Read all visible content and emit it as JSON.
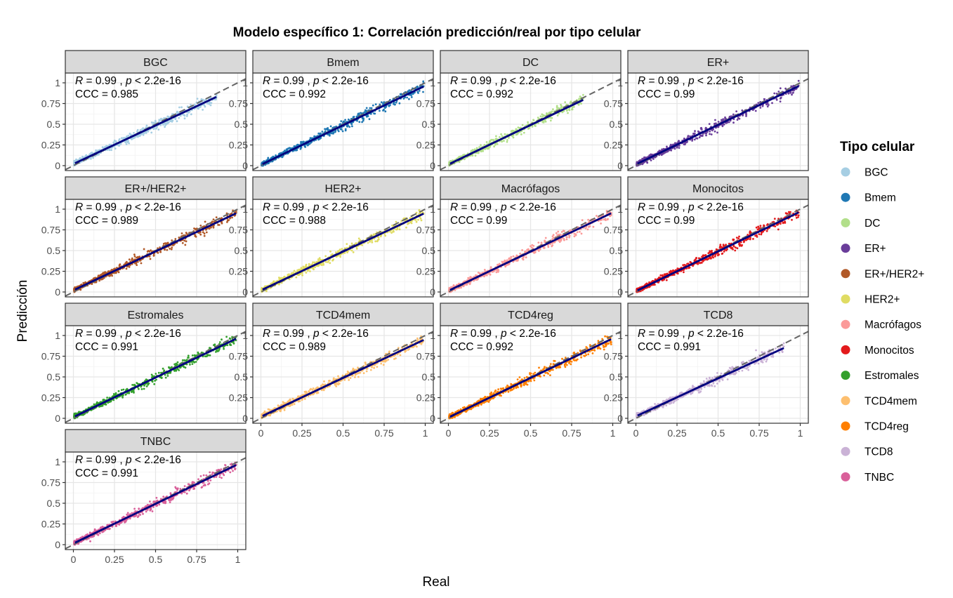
{
  "chart_data": {
    "type": "scatter",
    "title": "Modelo específico 1: Correlación predicción/real por tipo celular",
    "xlabel": "Real",
    "ylabel": "Predicción",
    "xlim": [
      0,
      1
    ],
    "ylim": [
      0,
      1
    ],
    "x_ticks": [
      "0",
      "0.25",
      "0.5",
      "0.75",
      "1"
    ],
    "y_ticks": [
      "0",
      "0.25",
      "0.5",
      "0.75",
      "1"
    ],
    "grid": true,
    "facet_layout": "4 columns x 4 rows",
    "identity_line": "dashed grey y = x",
    "legend": {
      "title": "Tipo celular",
      "placement": "right",
      "entries": [
        "BGC",
        "Bmem",
        "DC",
        "ER+",
        "ER+/HER2+",
        "HER2+",
        "Macrófagos",
        "Monocitos",
        "Estromales",
        "TCD4mem",
        "TCD4reg",
        "TCD8",
        "TNBC"
      ]
    },
    "annotation_template": {
      "r_sym": "R",
      "r_sep": " = ",
      "r_suffix": " , ",
      "p_sym": "p",
      "p_text": " < 2.2e-16",
      "ccc_prefix": "CCC = "
    },
    "panels": [
      {
        "name": "BGC",
        "color": "#A6CEE3",
        "R": "0.99",
        "CCC": "0.985",
        "xmax": 0.87,
        "fit_slope": 0.93,
        "fit_intercept": 0.02
      },
      {
        "name": "Bmem",
        "color": "#1F78B4",
        "R": "0.99",
        "CCC": "0.992",
        "xmax": 0.99,
        "fit_slope": 0.955,
        "fit_intercept": 0.01
      },
      {
        "name": "DC",
        "color": "#B2DF8A",
        "R": "0.99",
        "CCC": "0.992",
        "xmax": 0.82,
        "fit_slope": 0.95,
        "fit_intercept": 0.015
      },
      {
        "name": "ER+",
        "color": "#6A3D9A",
        "R": "0.99",
        "CCC": "0.99",
        "xmax": 0.99,
        "fit_slope": 0.955,
        "fit_intercept": 0.015
      },
      {
        "name": "ER+/HER2+",
        "color": "#B15928",
        "R": "0.99",
        "CCC": "0.989",
        "xmax": 0.99,
        "fit_slope": 0.94,
        "fit_intercept": 0.02
      },
      {
        "name": "HER2+",
        "color": "#E0DC63",
        "R": "0.99",
        "CCC": "0.988",
        "xmax": 0.99,
        "fit_slope": 0.935,
        "fit_intercept": 0.02
      },
      {
        "name": "Macrófagos",
        "color": "#FB9A99",
        "R": "0.99",
        "CCC": "0.99",
        "xmax": 0.99,
        "fit_slope": 0.945,
        "fit_intercept": 0.015
      },
      {
        "name": "Monocitos",
        "color": "#E31A1C",
        "R": "0.99",
        "CCC": "0.99",
        "xmax": 0.99,
        "fit_slope": 0.96,
        "fit_intercept": 0.01
      },
      {
        "name": "Estromales",
        "color": "#33A02C",
        "R": "0.99",
        "CCC": "0.991",
        "xmax": 0.99,
        "fit_slope": 0.955,
        "fit_intercept": 0.015
      },
      {
        "name": "TCD4mem",
        "color": "#FDBF6F",
        "R": "0.99",
        "CCC": "0.989",
        "xmax": 0.99,
        "fit_slope": 0.935,
        "fit_intercept": 0.02
      },
      {
        "name": "TCD4reg",
        "color": "#FF7F00",
        "R": "0.99",
        "CCC": "0.992",
        "xmax": 0.99,
        "fit_slope": 0.955,
        "fit_intercept": 0.01
      },
      {
        "name": "TCD8",
        "color": "#CAB2D6",
        "R": "0.99",
        "CCC": "0.991",
        "xmax": 0.9,
        "fit_slope": 0.915,
        "fit_intercept": 0.025
      },
      {
        "name": "TNBC",
        "color": "#D9609A",
        "R": "0.99",
        "CCC": "0.991",
        "xmax": 0.99,
        "fit_slope": 0.955,
        "fit_intercept": 0.015
      }
    ]
  }
}
